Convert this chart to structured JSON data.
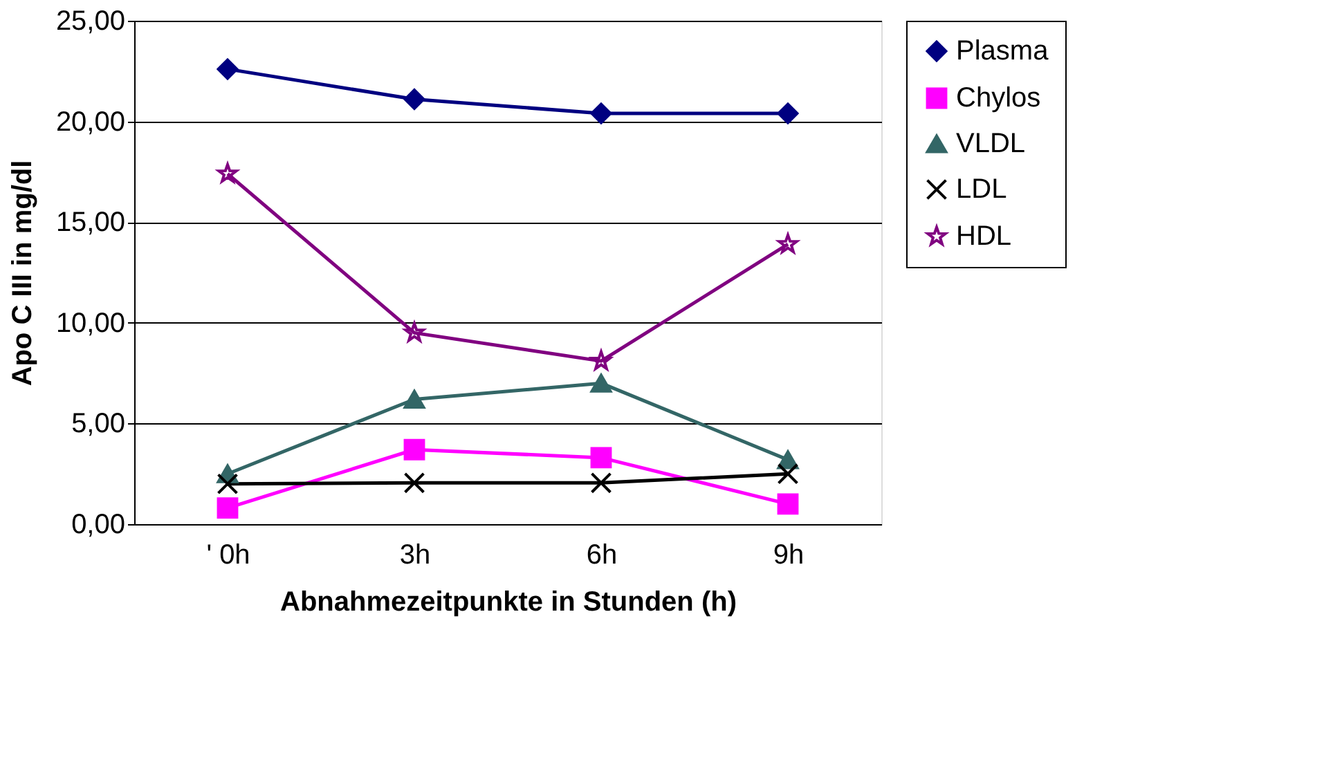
{
  "chart_data": {
    "type": "line",
    "xlabel": "Abnahmezeitpunkte in Stunden (h)",
    "ylabel": "Apo C III in mg/dl",
    "categories": [
      "' 0h",
      "3h",
      "6h",
      "9h"
    ],
    "series": [
      {
        "name": "Plasma",
        "color": "#000080",
        "marker": "diamond",
        "values": [
          22.6,
          21.1,
          20.4,
          20.4
        ]
      },
      {
        "name": "Chylos",
        "color": "#ff00ff",
        "marker": "square",
        "values": [
          0.8,
          3.7,
          3.3,
          1.0
        ]
      },
      {
        "name": "VLDL",
        "color": "#336666",
        "marker": "triangle",
        "values": [
          2.5,
          6.2,
          7.0,
          3.2
        ]
      },
      {
        "name": "LDL",
        "color": "#000000",
        "marker": "cross",
        "values": [
          2.0,
          2.05,
          2.05,
          2.5
        ]
      },
      {
        "name": "HDL",
        "color": "#800080",
        "marker": "star",
        "values": [
          17.4,
          9.5,
          8.1,
          13.9
        ]
      }
    ],
    "ylim": [
      0,
      25
    ],
    "yticks": [
      {
        "value": 0,
        "label": "0,00"
      },
      {
        "value": 5,
        "label": "5,00"
      },
      {
        "value": 10,
        "label": "10,00"
      },
      {
        "value": 15,
        "label": "15,00"
      },
      {
        "value": 20,
        "label": "20,00"
      },
      {
        "value": 25,
        "label": "25,00"
      }
    ],
    "grid": "y",
    "legend": "right",
    "line_style": "solid"
  }
}
